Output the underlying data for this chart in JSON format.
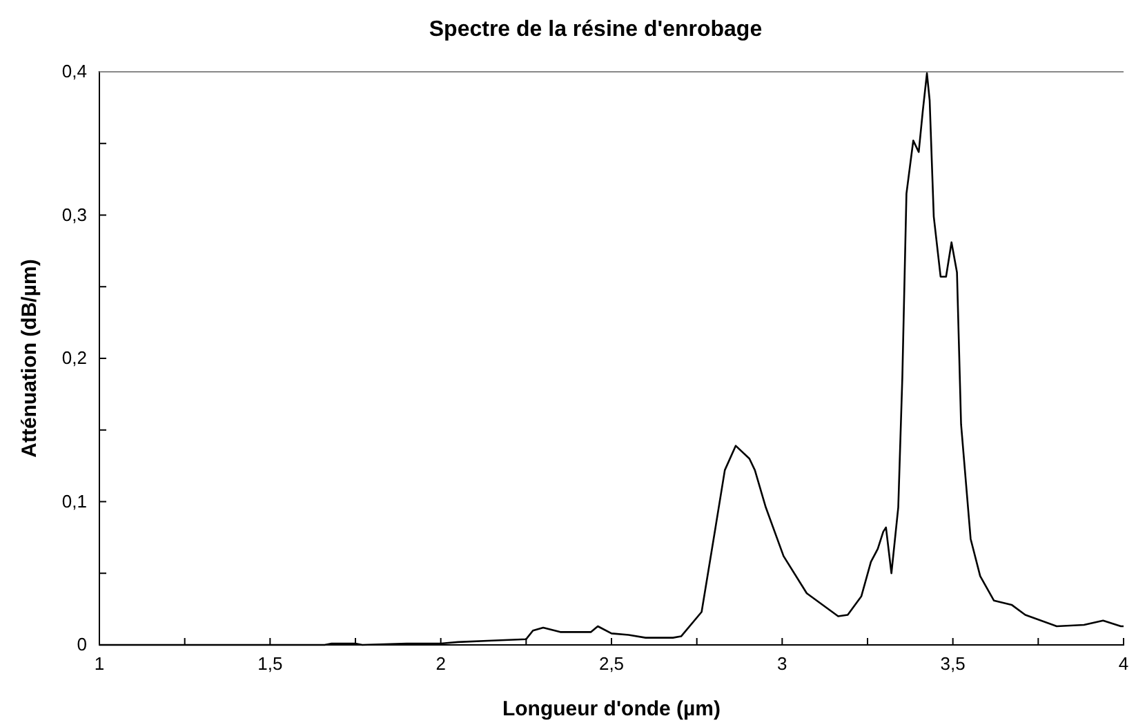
{
  "chart_data": {
    "type": "line",
    "title": "Spectre de la résine d'enrobage",
    "xlabel": "Longueur d'onde (µm)",
    "ylabel": "Atténuation (dB/µm)",
    "xlim": [
      1,
      4
    ],
    "ylim": [
      0,
      0.4
    ],
    "xticks": [
      1,
      {
        "value": 1.25,
        "label": null
      },
      {
        "value": 1.5,
        "label": "1,5"
      },
      {
        "value": 1.75,
        "label": null
      },
      2,
      {
        "value": 2.25,
        "label": null
      },
      {
        "value": 2.5,
        "label": "2,5"
      },
      {
        "value": 2.75,
        "label": null
      },
      3,
      {
        "value": 3.25,
        "label": null
      },
      {
        "value": 3.5,
        "label": "3,5"
      },
      {
        "value": 3.75,
        "label": null
      },
      4
    ],
    "yticks": [
      0,
      {
        "value": 0.05,
        "label": null
      },
      {
        "value": 0.1,
        "label": "0,1"
      },
      {
        "value": 0.15,
        "label": null
      },
      {
        "value": 0.2,
        "label": "0,2"
      },
      {
        "value": 0.25,
        "label": null
      },
      {
        "value": 0.3,
        "label": "0,3"
      },
      {
        "value": 0.35,
        "label": null
      },
      {
        "value": 0.4,
        "label": "0,4"
      }
    ],
    "grid": false,
    "marker": "none",
    "line_style": "solid",
    "series": [
      {
        "color": "#000000",
        "x": [
          1,
          1.3,
          1.6,
          1.66,
          1.68,
          1.75,
          1.77,
          1.9,
          2.0,
          2.05,
          2.15,
          2.25,
          2.27,
          2.3,
          2.35,
          2.4,
          2.44,
          2.46,
          2.5,
          2.55,
          2.6,
          2.68,
          2.704,
          2.764,
          2.804,
          2.832,
          2.864,
          2.904,
          2.92,
          2.952,
          3.004,
          3.072,
          3.164,
          3.192,
          3.232,
          3.26,
          3.28,
          3.296,
          3.304,
          3.32,
          3.34,
          3.352,
          3.364,
          3.384,
          3.4,
          3.412,
          3.424,
          3.432,
          3.444,
          3.464,
          3.48,
          3.496,
          3.512,
          3.524,
          3.552,
          3.58,
          3.62,
          3.672,
          3.712,
          3.804,
          3.884,
          3.94,
          3.992,
          4
        ],
        "values": [
          0,
          0,
          0,
          0,
          0.001,
          0.001,
          0,
          0.001,
          0.001,
          0.002,
          0.003,
          0.004,
          0.01,
          0.012,
          0.009,
          0.009,
          0.009,
          0.013,
          0.008,
          0.007,
          0.005,
          0.005,
          0.006,
          0.023,
          0.081,
          0.122,
          0.139,
          0.13,
          0.122,
          0.096,
          0.062,
          0.036,
          0.02,
          0.021,
          0.034,
          0.058,
          0.067,
          0.079,
          0.082,
          0.05,
          0.096,
          0.187,
          0.315,
          0.352,
          0.344,
          0.373,
          0.399,
          0.38,
          0.299,
          0.257,
          0.257,
          0.281,
          0.26,
          0.154,
          0.074,
          0.048,
          0.031,
          0.028,
          0.021,
          0.013,
          0.014,
          0.017,
          0.013,
          0.013
        ]
      }
    ]
  }
}
